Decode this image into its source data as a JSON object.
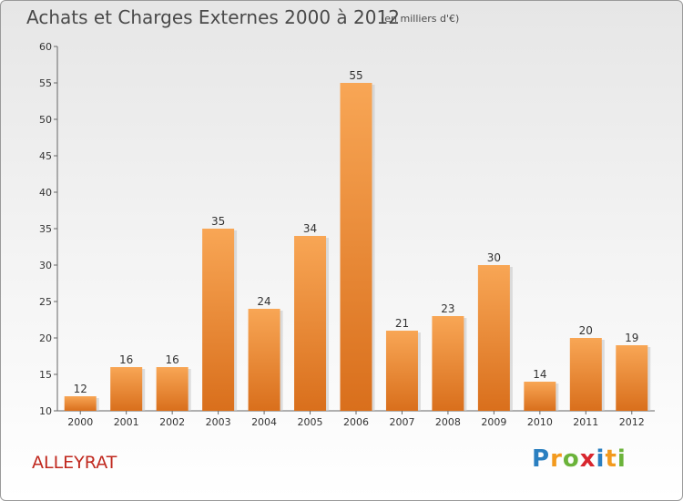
{
  "chart_data": {
    "type": "bar",
    "title": "Achats et Charges Externes 2000 à 2012",
    "subtitle": "(en milliers d'€)",
    "categories": [
      "2000",
      "2001",
      "2002",
      "2003",
      "2004",
      "2005",
      "2006",
      "2007",
      "2008",
      "2009",
      "2010",
      "2011",
      "2012"
    ],
    "values": [
      12,
      16,
      16,
      35,
      24,
      34,
      55,
      21,
      23,
      30,
      14,
      20,
      19
    ],
    "ylim": [
      10,
      60
    ],
    "yticks": [
      10,
      15,
      20,
      25,
      30,
      35,
      40,
      45,
      50,
      55,
      60
    ],
    "grid": false,
    "bar_color_light": "#f8a655",
    "bar_color_dark": "#d96f1c"
  },
  "footer": {
    "commune": "ALLEYRAT",
    "logo_letters": [
      {
        "ch": "P",
        "color": "#2a7fc0"
      },
      {
        "ch": "r",
        "color": "#f39a1e"
      },
      {
        "ch": "o",
        "color": "#6bb33a"
      },
      {
        "ch": "x",
        "color": "#d8262e"
      },
      {
        "ch": "i",
        "color": "#2a7fc0"
      },
      {
        "ch": "t",
        "color": "#f39a1e"
      },
      {
        "ch": "i",
        "color": "#6bb33a"
      }
    ]
  }
}
